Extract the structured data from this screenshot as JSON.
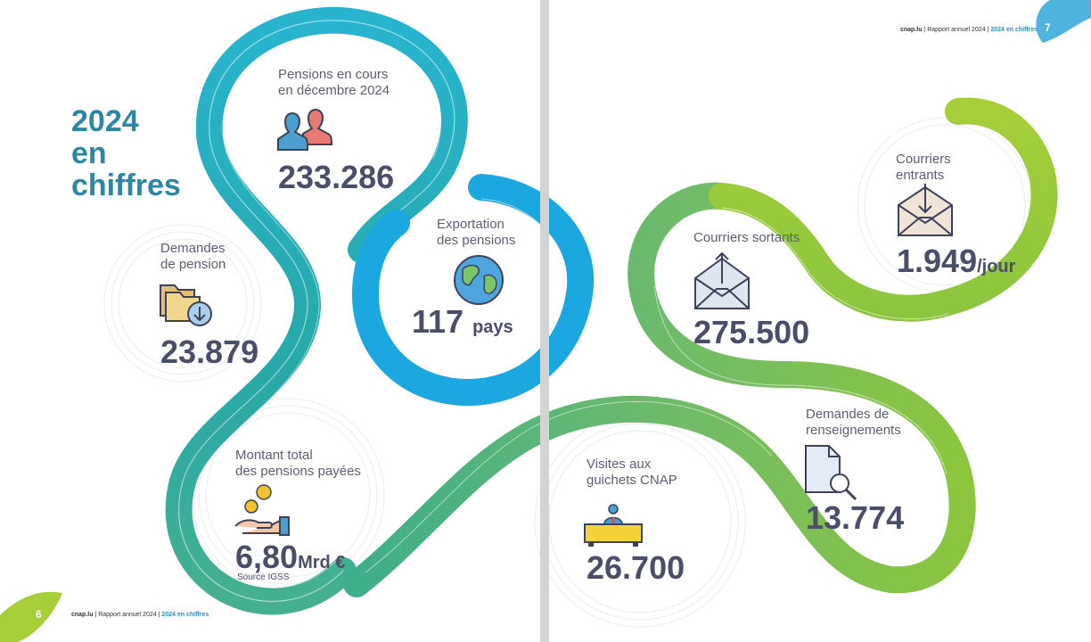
{
  "title": {
    "line1": "2024",
    "line2": "en",
    "line3": "chiffres"
  },
  "stats": {
    "pensions": {
      "label1": "Pensions en cours",
      "label2": "en décembre 2024",
      "value": "233.286"
    },
    "demandes": {
      "label1": "Demandes",
      "label2": "de pension",
      "value": "23.879"
    },
    "export": {
      "label1": "Exportation",
      "label2": "des pensions",
      "value": "117",
      "unit": "pays"
    },
    "montant": {
      "label1": "Montant total",
      "label2": "des pensions payées",
      "value": "6,80",
      "unit": "Mrd €",
      "source": "Source IGSS"
    },
    "sortants": {
      "label1": "Courriers sortants",
      "value": "275.500"
    },
    "entrants": {
      "label1": "Courriers",
      "label2": "entrants",
      "value": "1.949",
      "unit": "/jour"
    },
    "renseignements": {
      "label1": "Demandes de",
      "label2": "renseignements",
      "value": "13.774"
    },
    "visites": {
      "label1": "Visites aux",
      "label2": "guichets CNAP",
      "value": "26.700"
    }
  },
  "footer": {
    "left": {
      "page": "6",
      "site": "cnap.lu",
      "report": "| Rapport annuel 2024 |",
      "section": "2024 en chiffres"
    },
    "right": {
      "page": "7",
      "site": "cnap.lu",
      "report": "| Rapport annuel 2024 |",
      "section": "2024 en chiffres"
    }
  },
  "colors": {
    "teal": "#2aa6b5",
    "blue": "#1ba7df",
    "green": "#8cc63f",
    "lime": "#a6ce39",
    "text": "#4a4f67",
    "title": "#2d86a2"
  },
  "icons": [
    "people-icon",
    "folder-download-icon",
    "globe-icon",
    "coin-hand-icon",
    "envelope-out-icon",
    "envelope-in-icon",
    "document-search-icon",
    "desk-agent-icon"
  ]
}
